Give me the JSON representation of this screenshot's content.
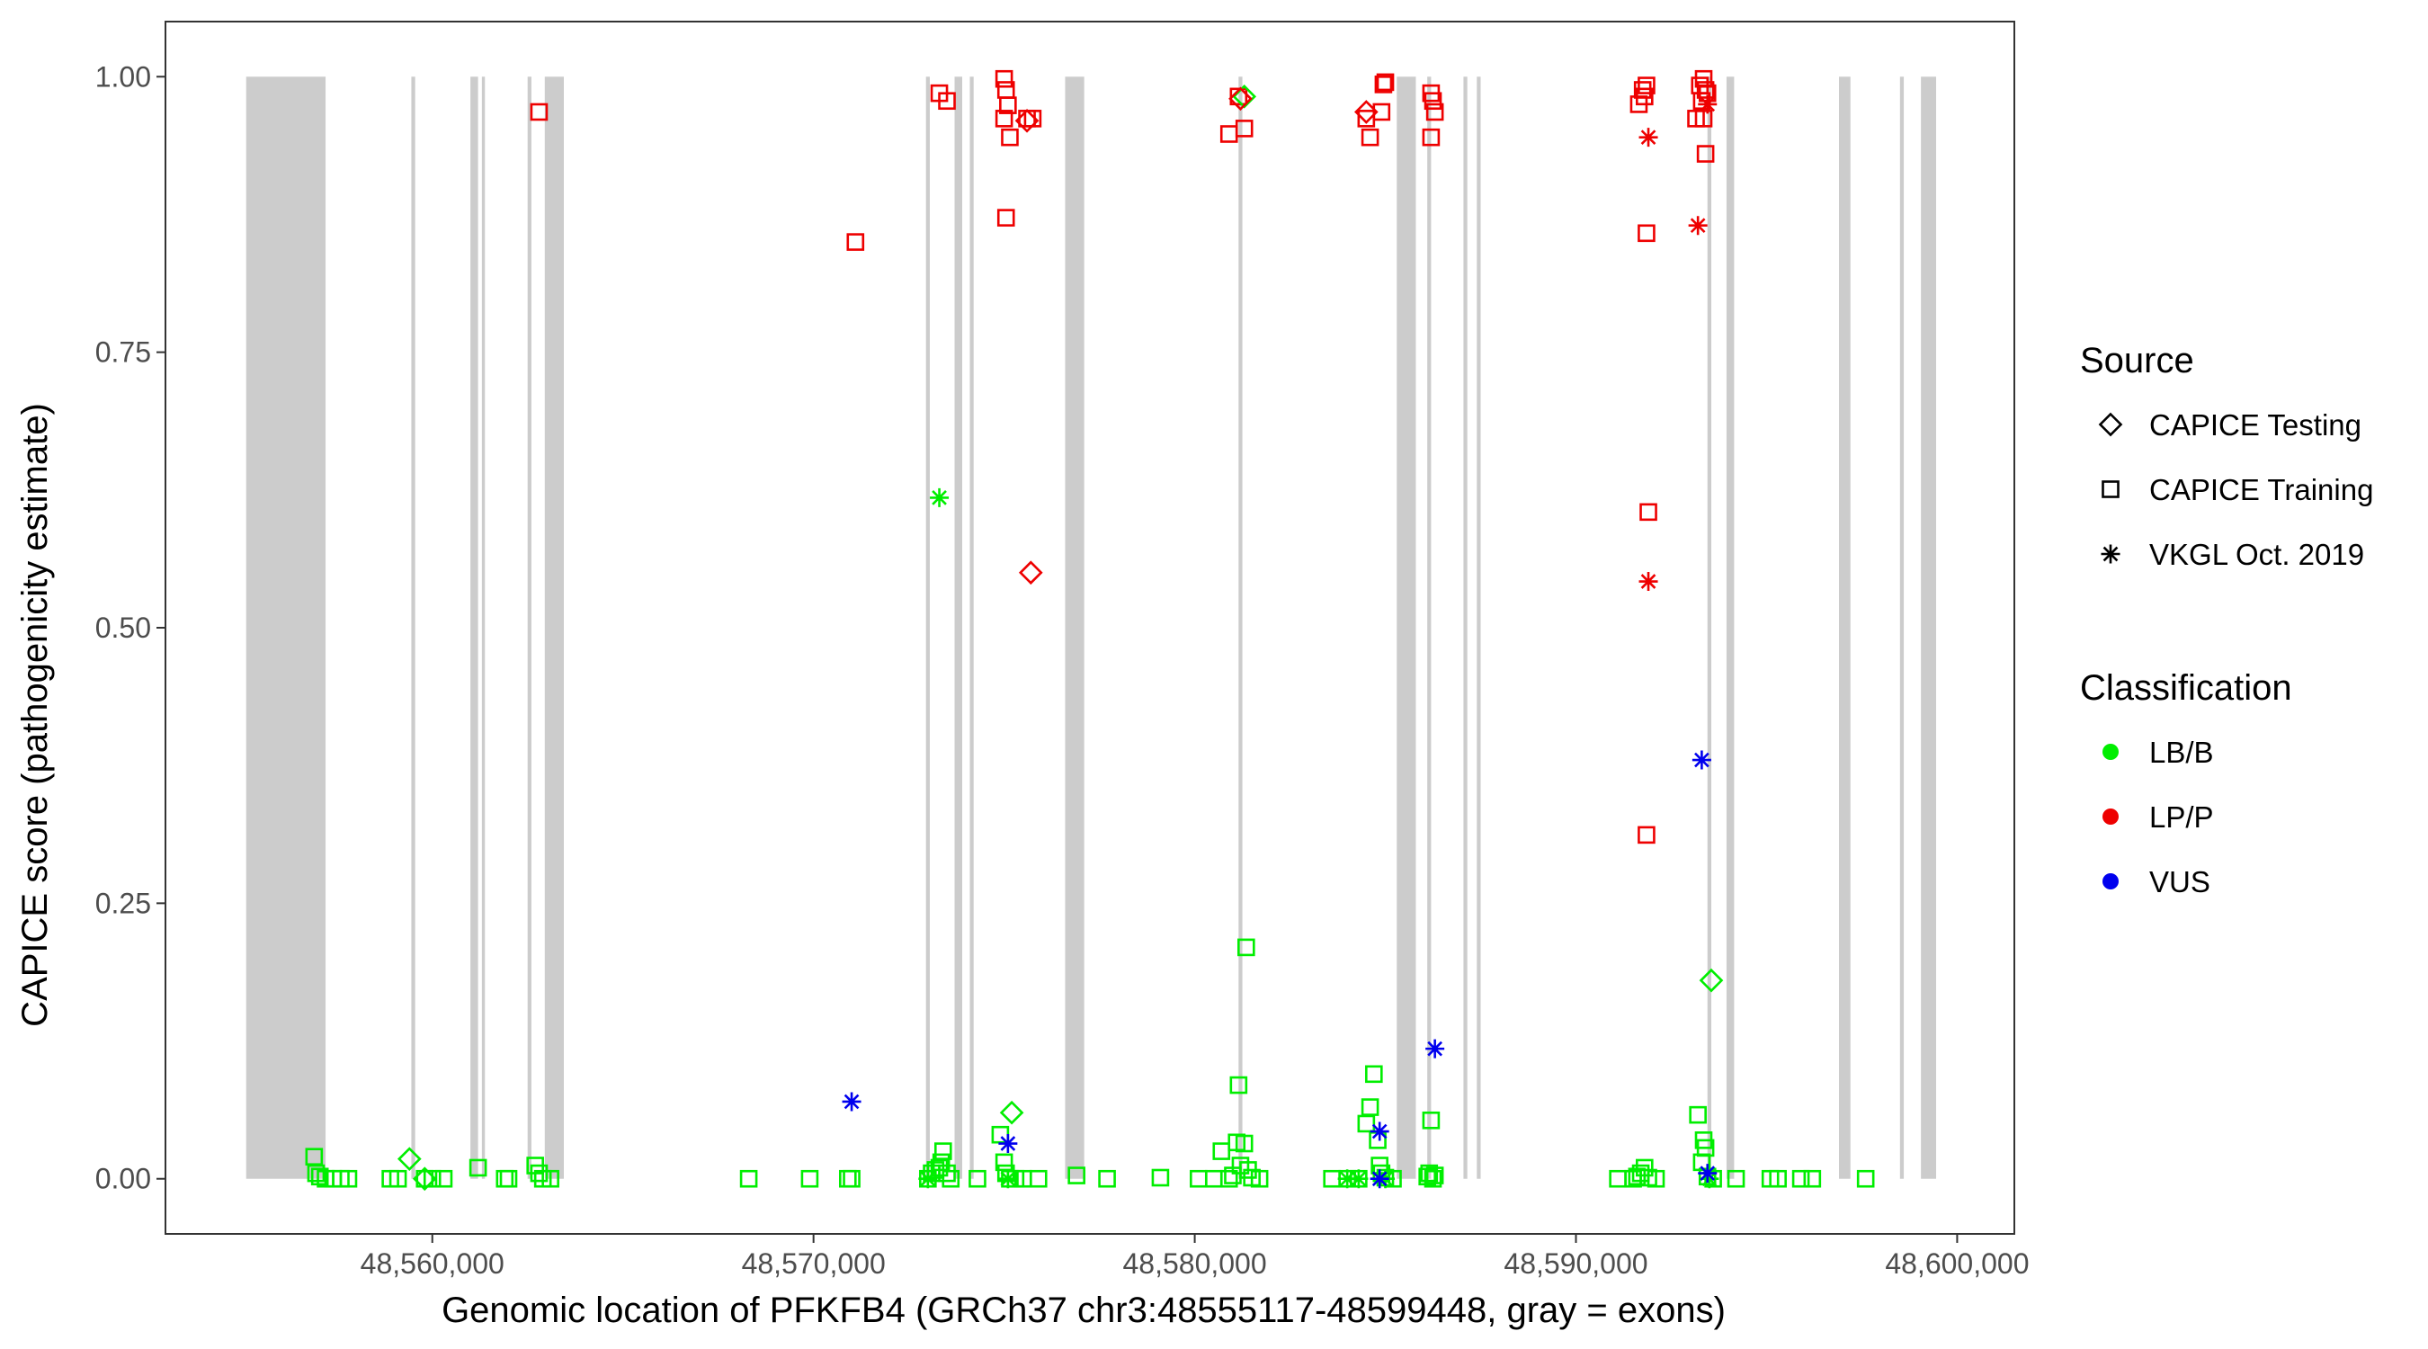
{
  "chart_data": {
    "type": "scatter",
    "title": "",
    "xlabel": "Genomic location of PFKFB4 (GRCh37 chr3:48555117-48599448, gray = exons)",
    "ylabel": "CAPICE score (pathogenicity estimate)",
    "xlim": [
      48553000,
      48601500
    ],
    "ylim": [
      -0.05,
      1.05
    ],
    "x_ticks": [
      48560000,
      48570000,
      48580000,
      48590000,
      48600000
    ],
    "x_tick_labels": [
      "48,560,000",
      "48,570,000",
      "48,580,000",
      "48,590,000",
      "48,600,000"
    ],
    "y_ticks": [
      0,
      0.25,
      0.5,
      0.75,
      1
    ],
    "y_tick_labels": [
      "0.00",
      "0.25",
      "0.50",
      "0.75",
      "1.00"
    ],
    "grid": false,
    "exons": [
      [
        48555117,
        48557200
      ],
      [
        48559450,
        48559550
      ],
      [
        48561000,
        48561200
      ],
      [
        48561300,
        48561380
      ],
      [
        48562500,
        48562600
      ],
      [
        48562950,
        48563450
      ],
      [
        48572950,
        48573050
      ],
      [
        48573700,
        48573900
      ],
      [
        48574100,
        48574200
      ],
      [
        48576600,
        48577100
      ],
      [
        48581150,
        48581250
      ],
      [
        48585300,
        48585800
      ],
      [
        48586100,
        48586200
      ],
      [
        48587050,
        48587150
      ],
      [
        48587400,
        48587500
      ],
      [
        48593450,
        48593550
      ],
      [
        48593950,
        48594150
      ],
      [
        48596900,
        48597200
      ],
      [
        48598500,
        48598600
      ],
      [
        48599050,
        48599448
      ]
    ],
    "legend": {
      "placement": "right",
      "shape_title": "Source",
      "shape_entries": [
        {
          "label": "CAPICE Testing",
          "shape": "diamond"
        },
        {
          "label": "CAPICE Training",
          "shape": "square"
        },
        {
          "label": "VKGL Oct. 2019",
          "shape": "asterisk"
        }
      ],
      "color_title": "Classification",
      "color_entries": [
        {
          "label": "LB/B",
          "color": "#00ee00"
        },
        {
          "label": "LP/P",
          "color": "#ee0000"
        },
        {
          "label": "VUS",
          "color": "#0000ee"
        }
      ]
    },
    "series": [
      {
        "name": "LB/B",
        "source": "CAPICE Training",
        "shape": "square",
        "color": "#00ee00",
        "points": [
          [
            48556900,
            0.02
          ],
          [
            48556950,
            0.005
          ],
          [
            48557050,
            0.002
          ],
          [
            48557200,
            0
          ],
          [
            48557400,
            0
          ],
          [
            48557600,
            0
          ],
          [
            48557800,
            0
          ],
          [
            48558900,
            0
          ],
          [
            48559100,
            0
          ],
          [
            48559800,
            0
          ],
          [
            48560000,
            0
          ],
          [
            48560300,
            0
          ],
          [
            48561200,
            0.01
          ],
          [
            48561900,
            0
          ],
          [
            48562000,
            0
          ],
          [
            48562700,
            0.012
          ],
          [
            48562800,
            0.005
          ],
          [
            48562900,
            0
          ],
          [
            48563100,
            0
          ],
          [
            48568300,
            0
          ],
          [
            48569900,
            0
          ],
          [
            48570900,
            0
          ],
          [
            48571000,
            0
          ],
          [
            48573000,
            0
          ],
          [
            48573100,
            0.005
          ],
          [
            48573200,
            0.008
          ],
          [
            48573300,
            0.01
          ],
          [
            48573350,
            0.015
          ],
          [
            48573400,
            0.025
          ],
          [
            48573500,
            0.005
          ],
          [
            48573600,
            0
          ],
          [
            48574300,
            0
          ],
          [
            48574900,
            0.04
          ],
          [
            48575000,
            0.015
          ],
          [
            48575050,
            0.005
          ],
          [
            48575150,
            0
          ],
          [
            48575300,
            0
          ],
          [
            48575500,
            0
          ],
          [
            48575900,
            0
          ],
          [
            48576900,
            0.003
          ],
          [
            48577700,
            0
          ],
          [
            48579100,
            0.001
          ],
          [
            48580100,
            0
          ],
          [
            48580500,
            0
          ],
          [
            48580700,
            0.025
          ],
          [
            48580900,
            0
          ],
          [
            48581000,
            0.003
          ],
          [
            48581100,
            0.033
          ],
          [
            48581150,
            0.085
          ],
          [
            48581200,
            0.012
          ],
          [
            48581300,
            0.032
          ],
          [
            48581350,
            0.21
          ],
          [
            48581400,
            0.008
          ],
          [
            48581500,
            0.001
          ],
          [
            48581700,
            0
          ],
          [
            48583600,
            0
          ],
          [
            48584000,
            0
          ],
          [
            48584300,
            0
          ],
          [
            48584500,
            0.05
          ],
          [
            48584600,
            0.065
          ],
          [
            48584700,
            0.095
          ],
          [
            48584800,
            0.035
          ],
          [
            48584850,
            0.012
          ],
          [
            48584900,
            0.005
          ],
          [
            48585000,
            0.001
          ],
          [
            48585200,
            0
          ],
          [
            48586100,
            0.002
          ],
          [
            48586150,
            0.005
          ],
          [
            48586200,
            0.053
          ],
          [
            48586250,
            0
          ],
          [
            48586300,
            0.003
          ],
          [
            48591100,
            0
          ],
          [
            48591500,
            0
          ],
          [
            48591600,
            0.002
          ],
          [
            48591700,
            0.005
          ],
          [
            48591800,
            0.01
          ],
          [
            48591900,
            0.001
          ],
          [
            48592100,
            0
          ],
          [
            48593200,
            0.058
          ],
          [
            48593300,
            0.015
          ],
          [
            48593350,
            0.035
          ],
          [
            48593400,
            0.028
          ],
          [
            48593450,
            0.002
          ],
          [
            48593600,
            0
          ],
          [
            48594200,
            0
          ],
          [
            48595100,
            0
          ],
          [
            48595300,
            0
          ],
          [
            48595900,
            0
          ],
          [
            48596200,
            0
          ],
          [
            48597600,
            0
          ]
        ]
      },
      {
        "name": "LP/P",
        "source": "CAPICE Training",
        "shape": "square",
        "color": "#ee0000",
        "points": [
          [
            48562800,
            0.968
          ],
          [
            48571100,
            0.85
          ],
          [
            48573300,
            0.985
          ],
          [
            48573500,
            0.978
          ],
          [
            48575000,
            0.998
          ],
          [
            48575050,
            0.988
          ],
          [
            48575100,
            0.974
          ],
          [
            48575000,
            0.962
          ],
          [
            48575150,
            0.945
          ],
          [
            48575050,
            0.872
          ],
          [
            48575600,
            0.962
          ],
          [
            48575750,
            0.962
          ],
          [
            48580900,
            0.948
          ],
          [
            48581300,
            0.953
          ],
          [
            48581150,
            0.982
          ],
          [
            48584500,
            0.962
          ],
          [
            48584600,
            0.945
          ],
          [
            48584900,
            0.968
          ],
          [
            48584950,
            0.993
          ],
          [
            48585000,
            0.995
          ],
          [
            48586200,
            0.985
          ],
          [
            48586250,
            0.978
          ],
          [
            48586300,
            0.968
          ],
          [
            48586200,
            0.945
          ],
          [
            48591750,
            0.988
          ],
          [
            48591850,
            0.992
          ],
          [
            48591650,
            0.975
          ],
          [
            48591800,
            0.982
          ],
          [
            48591850,
            0.858
          ],
          [
            48591900,
            0.605
          ],
          [
            48591850,
            0.312
          ],
          [
            48593150,
            0.962
          ],
          [
            48593250,
            0.992
          ],
          [
            48593350,
            0.998
          ],
          [
            48593400,
            0.988
          ],
          [
            48593450,
            0.985
          ],
          [
            48593300,
            0.978
          ],
          [
            48593350,
            0.962
          ],
          [
            48593400,
            0.93
          ]
        ]
      },
      {
        "name": "LB/B",
        "source": "CAPICE Testing",
        "shape": "diamond",
        "color": "#00ee00",
        "points": [
          [
            48559400,
            0.018
          ],
          [
            48559800,
            0
          ],
          [
            48575200,
            0.06
          ],
          [
            48581300,
            0.982
          ],
          [
            48593550,
            0.18
          ]
        ]
      },
      {
        "name": "LP/P",
        "source": "CAPICE Testing",
        "shape": "diamond",
        "color": "#ee0000",
        "points": [
          [
            48575600,
            0.96
          ],
          [
            48575700,
            0.55
          ],
          [
            48581200,
            0.98
          ],
          [
            48584500,
            0.968
          ]
        ]
      },
      {
        "name": "LB/B",
        "source": "VKGL Oct. 2019",
        "shape": "asterisk",
        "color": "#00ee00",
        "points": [
          [
            48573300,
            0.618
          ],
          [
            48573000,
            0
          ],
          [
            48575100,
            0
          ],
          [
            48584000,
            0
          ],
          [
            48584300,
            0
          ],
          [
            48585000,
            0
          ],
          [
            48593500,
            0
          ]
        ]
      },
      {
        "name": "LP/P",
        "source": "VKGL Oct. 2019",
        "shape": "asterisk",
        "color": "#ee0000",
        "points": [
          [
            48591900,
            0.945
          ],
          [
            48591900,
            0.542
          ],
          [
            48593200,
            0.865
          ],
          [
            48593450,
            0.975
          ]
        ]
      },
      {
        "name": "VUS",
        "source": "VKGL Oct. 2019",
        "shape": "asterisk",
        "color": "#0000ee",
        "points": [
          [
            48571000,
            0.07
          ],
          [
            48575100,
            0.032
          ],
          [
            48584850,
            0.043
          ],
          [
            48584850,
            0
          ],
          [
            48586300,
            0.118
          ],
          [
            48593300,
            0.38
          ],
          [
            48593450,
            0.005
          ]
        ]
      }
    ]
  }
}
